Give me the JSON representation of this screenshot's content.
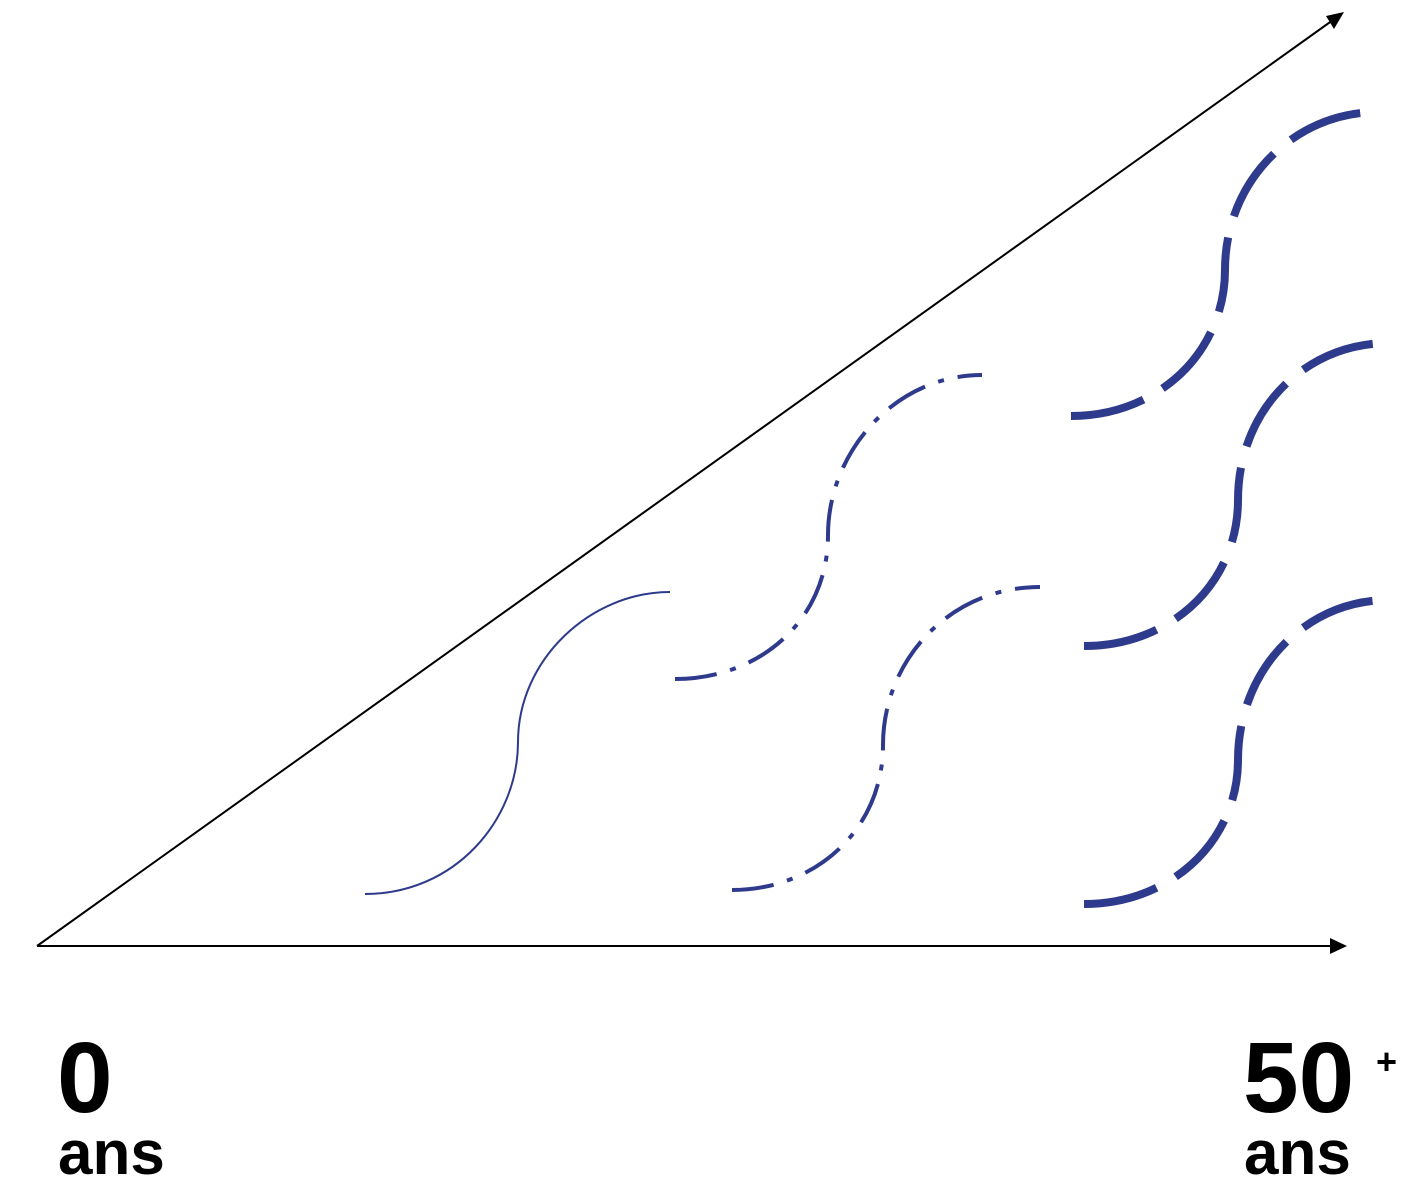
{
  "labels": {
    "start_value": "0",
    "start_unit": "ans",
    "end_value": "50",
    "end_superscript": "+",
    "end_unit": "ans"
  },
  "colors": {
    "axes": "#000000",
    "curves": "#2e3a8c"
  },
  "curves": [
    {
      "name": "curve-stage-1",
      "style": "solid-thin"
    },
    {
      "name": "curve-stage-2-upper",
      "style": "dash-dot"
    },
    {
      "name": "curve-stage-2-lower",
      "style": "dash-dot"
    },
    {
      "name": "curve-stage-3-top",
      "style": "dashed-thick"
    },
    {
      "name": "curve-stage-3-middle",
      "style": "dashed-thick"
    },
    {
      "name": "curve-stage-3-bottom",
      "style": "dashed-thick"
    }
  ]
}
